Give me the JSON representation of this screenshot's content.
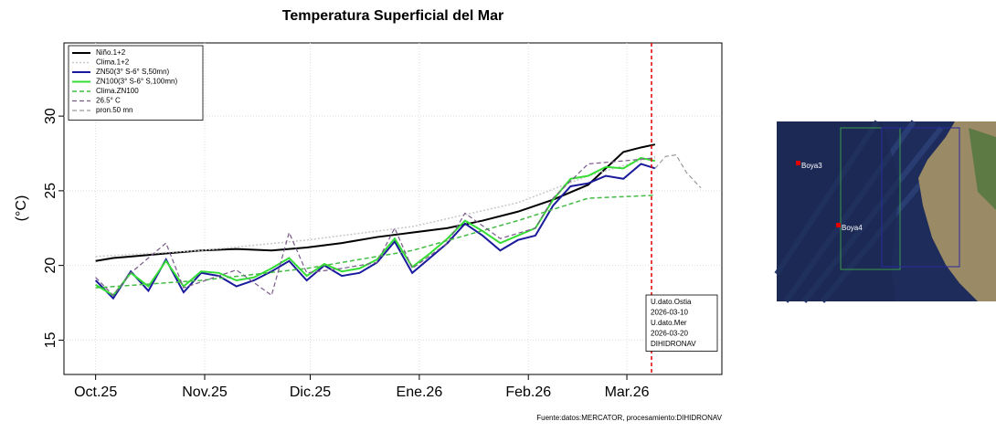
{
  "chart_data": {
    "type": "line",
    "title": "Temperatura Superficial del Mar",
    "y_label": "(°C)",
    "source": "Fuente:datos:MERCATOR, procesamiento:DIHIDRONAV",
    "annotation": [
      "U.dato.Ostia",
      "2026-03-10",
      "U.dato.Mer",
      "2026-03-20",
      "DIHIDRONAV"
    ],
    "xlim": [
      -9,
      178
    ],
    "xticks": [
      {
        "value": 0,
        "label": "Oct.25"
      },
      {
        "value": 31,
        "label": "Nov.25"
      },
      {
        "value": 61,
        "label": "Dic.25"
      },
      {
        "value": 92,
        "label": "Ene.26"
      },
      {
        "value": 123,
        "label": "Feb.26"
      },
      {
        "value": 151,
        "label": "Mar.26"
      }
    ],
    "ylim": [
      12.7,
      34.9
    ],
    "yticks": [
      15,
      20,
      25,
      30
    ],
    "grid": true,
    "legend": "top-left",
    "vertical_line": {
      "x": 158,
      "color": "#e00000"
    },
    "series": [
      {
        "name": "Niño.1+2",
        "color": "#000000",
        "style": "solid",
        "width": 2,
        "x": [
          0,
          5,
          10,
          20,
          30,
          40,
          50,
          60,
          70,
          80,
          90,
          100,
          110,
          120,
          130,
          140,
          145,
          150,
          155,
          159
        ],
        "values": [
          20.3,
          20.5,
          20.6,
          20.8,
          21.0,
          21.1,
          21.0,
          21.2,
          21.5,
          21.9,
          22.2,
          22.5,
          23.0,
          23.6,
          24.4,
          25.4,
          26.5,
          27.6,
          27.9,
          28.1
        ]
      },
      {
        "name": "Clima.1+2",
        "color": "#c8c8c8",
        "style": "dotted",
        "width": 1.5,
        "x": [
          0,
          30,
          60,
          90,
          120,
          140,
          159
        ],
        "values": [
          20.6,
          21.0,
          21.7,
          22.6,
          24.2,
          26.0,
          27.3
        ]
      },
      {
        "name": "ZN50(3° S-6° S,50mn)",
        "color": "#1a1a9c",
        "style": "solid",
        "width": 2,
        "x": [
          0,
          5,
          10,
          15,
          20,
          25,
          30,
          35,
          40,
          45,
          50,
          55,
          60,
          65,
          70,
          75,
          80,
          85,
          90,
          95,
          100,
          105,
          110,
          115,
          120,
          125,
          130,
          135,
          140,
          145,
          150,
          155,
          159
        ],
        "values": [
          19.0,
          17.8,
          19.6,
          18.3,
          20.4,
          18.2,
          19.5,
          19.3,
          18.6,
          19.0,
          19.6,
          20.3,
          19.0,
          20.0,
          19.3,
          19.5,
          20.2,
          21.6,
          19.5,
          20.5,
          21.5,
          22.8,
          22.0,
          21.0,
          21.7,
          22.0,
          24.0,
          25.3,
          25.5,
          26.0,
          25.8,
          26.8,
          26.5
        ]
      },
      {
        "name": "ZN100(3° S-6° S,100mn)",
        "color": "#33dd33",
        "style": "solid",
        "width": 2,
        "x": [
          0,
          5,
          10,
          15,
          20,
          25,
          30,
          35,
          40,
          45,
          50,
          55,
          60,
          65,
          70,
          75,
          80,
          85,
          90,
          95,
          100,
          105,
          110,
          115,
          120,
          125,
          130,
          135,
          140,
          145,
          150,
          155,
          159
        ],
        "values": [
          18.7,
          18.0,
          19.5,
          18.6,
          20.3,
          18.6,
          19.6,
          19.5,
          19.0,
          19.2,
          19.8,
          20.5,
          19.3,
          20.1,
          19.6,
          19.8,
          20.4,
          21.8,
          19.9,
          20.8,
          21.8,
          23.0,
          22.3,
          21.5,
          22.0,
          22.5,
          24.4,
          25.8,
          26.0,
          26.6,
          26.5,
          27.2,
          27.0
        ]
      },
      {
        "name": "Clima.ZN100",
        "color": "#44bb44",
        "style": "dashed",
        "width": 1.5,
        "x": [
          0,
          30,
          60,
          90,
          120,
          140,
          159
        ],
        "values": [
          18.5,
          19.0,
          19.8,
          21.0,
          23.0,
          24.5,
          24.7
        ]
      },
      {
        "name": "26.5° C",
        "color": "#7a5a8a",
        "style": "dashed",
        "width": 1.2,
        "x": [
          0,
          5,
          10,
          20,
          25,
          40,
          50,
          55,
          60,
          70,
          80,
          85,
          90,
          100,
          105,
          115,
          125,
          130,
          140,
          150,
          159
        ],
        "values": [
          19.2,
          18.0,
          19.5,
          21.5,
          18.5,
          19.7,
          18.0,
          22.2,
          19.5,
          19.8,
          20.2,
          22.5,
          19.8,
          21.5,
          23.5,
          21.8,
          22.5,
          24.5,
          26.8,
          27.0,
          27.2
        ]
      },
      {
        "name": "pron.50 mn",
        "color": "#999999",
        "style": "dashed",
        "width": 1.2,
        "x": [
          159,
          162,
          165,
          168,
          172
        ],
        "values": [
          26.5,
          27.3,
          27.4,
          26.2,
          25.2
        ]
      }
    ]
  },
  "map": {
    "labels": [
      "Boya3",
      "Boya4"
    ]
  }
}
